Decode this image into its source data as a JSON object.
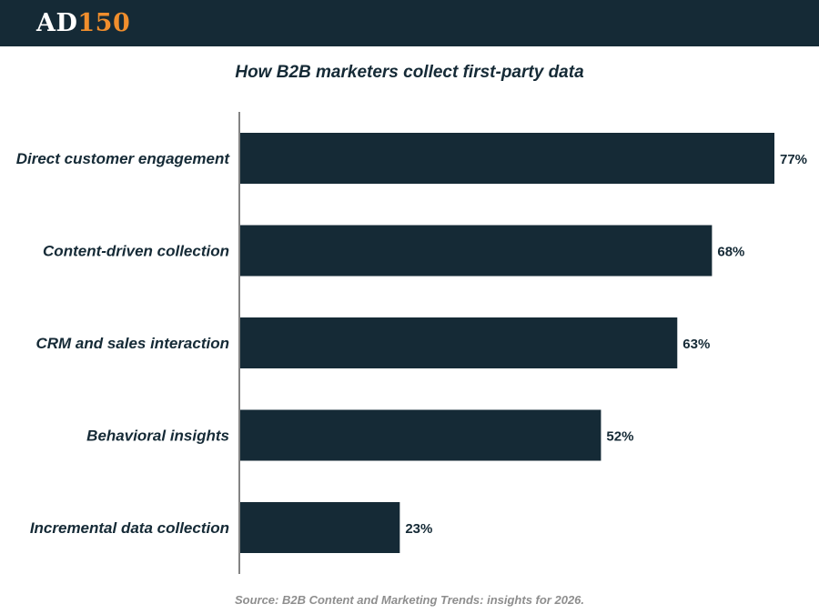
{
  "header": {
    "logo_ad": "AD",
    "logo_num": "150"
  },
  "colors": {
    "header_bg": "#152a36",
    "logo_accent": "#f08e2d",
    "bar": "#152a36",
    "text": "#152a36",
    "source_text": "#8e8e8e"
  },
  "chart_data": {
    "type": "bar",
    "orientation": "horizontal",
    "title": "How B2B marketers collect first-party data",
    "categories": [
      "Direct customer engagement",
      "Content-driven collection",
      "CRM and sales interaction",
      "Behavioral insights",
      "Incremental data collection"
    ],
    "values": [
      77,
      68,
      63,
      52,
      23
    ],
    "value_labels": [
      "77%",
      "68%",
      "63%",
      "52%",
      "23%"
    ],
    "unit": "%",
    "xlim": [
      0,
      100
    ],
    "xlabel": "",
    "ylabel": "",
    "grid": false
  },
  "source": "Source: B2B Content and Marketing Trends: insights for 2026."
}
